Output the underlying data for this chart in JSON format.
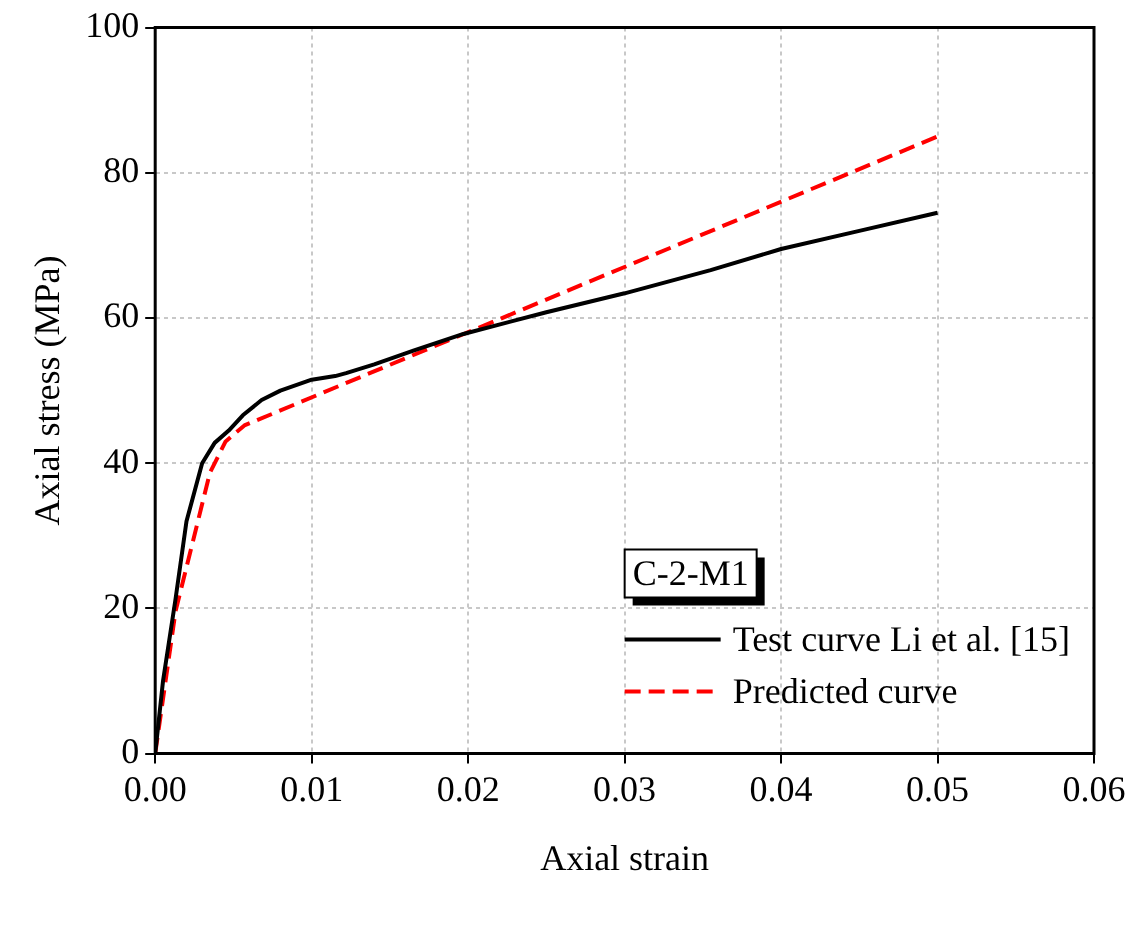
{
  "chart_data": {
    "type": "line",
    "xlabel": "Axial strain",
    "ylabel": "Axial stress (MPa)",
    "legend_title": "C-2-M1",
    "xlim": [
      0,
      0.06
    ],
    "xticks": [
      {
        "value": 0,
        "label": "0.00"
      },
      0.01,
      0.02,
      0.03,
      0.04,
      0.05,
      {
        "value": 0.06,
        "label": "0.06"
      }
    ],
    "ylim": [
      0,
      100
    ],
    "yticks": [
      0,
      20,
      40,
      60,
      80,
      100
    ],
    "grid": true,
    "legend": "bottom right",
    "marker": "none",
    "series": [
      {
        "name": "Test curve Li et al. [15]",
        "color": "#000000",
        "line_style": "solid",
        "x": [
          0,
          0.0005,
          0.0013,
          0.002,
          0.003,
          0.0038,
          0.0047,
          0.0056,
          0.0068,
          0.008,
          0.01,
          0.0115,
          0.0122,
          0.014,
          0.0165,
          0.0197,
          0.025,
          0.03,
          0.0355,
          0.04,
          0.045,
          0.05
        ],
        "values": [
          0,
          10,
          21.3,
          32,
          40,
          42.8,
          44.5,
          46.6,
          48.7,
          50,
          51.5,
          52,
          52.4,
          53.6,
          55.5,
          57.8,
          60.8,
          63.4,
          66.6,
          69.5,
          72,
          74.5
        ]
      },
      {
        "name": "Predicted curve",
        "color": "#ff0000",
        "line_style": "dashed",
        "x": [
          0,
          0.0013,
          0.0035,
          0.0045,
          0.0057,
          0.05
        ],
        "values": [
          0,
          19.6,
          38.7,
          43,
          45.2,
          85
        ]
      }
    ]
  }
}
